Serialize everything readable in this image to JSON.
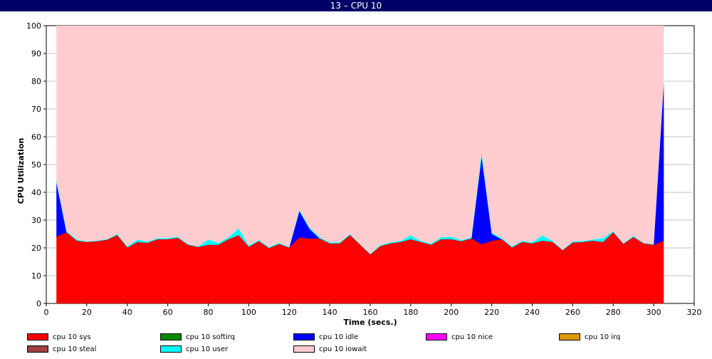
{
  "window": {
    "title": "13 – CPU 10"
  },
  "chart_data": {
    "type": "area",
    "stacked": true,
    "xlabel": "Time (secs.)",
    "ylabel": "CPU Utilization",
    "xlim": [
      0,
      320
    ],
    "ylim": [
      0,
      100
    ],
    "x_ticks": [
      0,
      20,
      40,
      60,
      80,
      100,
      120,
      140,
      160,
      180,
      200,
      220,
      240,
      260,
      280,
      300,
      320
    ],
    "y_ticks": [
      0,
      10,
      20,
      30,
      40,
      50,
      60,
      70,
      80,
      90,
      100
    ],
    "grid": "horizontal",
    "legend_position": "bottom",
    "x": [
      5,
      10,
      15,
      20,
      25,
      30,
      35,
      40,
      45,
      50,
      55,
      60,
      65,
      70,
      75,
      80,
      85,
      90,
      95,
      100,
      105,
      110,
      115,
      120,
      125,
      130,
      135,
      140,
      145,
      150,
      155,
      160,
      165,
      170,
      175,
      180,
      185,
      190,
      195,
      200,
      205,
      210,
      215,
      220,
      225,
      230,
      235,
      240,
      245,
      250,
      255,
      260,
      265,
      270,
      275,
      280,
      285,
      290,
      295,
      300,
      305
    ],
    "series": [
      {
        "name": "cpu 10 sys",
        "color": "#ff0000",
        "values": [
          24,
          25.5,
          22.5,
          22,
          22.3,
          22.8,
          24.5,
          20,
          22,
          21.7,
          23,
          23,
          23.5,
          21,
          20.2,
          21,
          21,
          23,
          24.5,
          20.3,
          22.3,
          19.8,
          21.3,
          20,
          23.7,
          23.3,
          23.3,
          21.5,
          21.5,
          24.5,
          21,
          17.5,
          20.5,
          21.5,
          22,
          23,
          22,
          21,
          23,
          23,
          22.3,
          23.3,
          21.2,
          22.5,
          23,
          20,
          22,
          21.5,
          22.5,
          22,
          19,
          21.8,
          22,
          22.5,
          22,
          25.5,
          21.3,
          23.8,
          21.5,
          21,
          22.5
        ]
      },
      {
        "name": "cpu 10 softirq",
        "color": "#008800",
        "values": [
          0,
          0,
          0,
          0,
          0,
          0,
          0,
          0,
          0,
          0,
          0,
          0,
          0,
          0,
          0,
          0,
          0,
          0,
          0,
          0,
          0,
          0,
          0,
          0,
          0,
          0,
          0,
          0,
          0,
          0,
          0,
          0,
          0,
          0,
          0,
          0,
          0,
          0,
          0,
          0,
          0,
          0,
          0,
          0,
          0,
          0,
          0,
          0,
          0,
          0,
          0,
          0,
          0,
          0,
          0,
          0,
          0,
          0,
          0,
          0,
          0
        ]
      },
      {
        "name": "cpu 10 idle",
        "color": "#0000ff",
        "values": [
          19.5,
          0,
          0,
          0,
          0,
          0,
          0,
          0,
          0,
          0,
          0,
          0,
          0,
          0,
          0,
          0,
          0,
          0,
          0,
          0,
          0,
          0,
          0,
          0,
          9.5,
          3.5,
          0,
          0,
          0,
          0,
          0,
          0,
          0,
          0,
          0,
          0,
          0,
          0,
          0,
          0,
          0,
          0,
          31.5,
          2.5,
          0,
          0,
          0,
          0,
          0,
          0,
          0,
          0,
          0,
          0,
          0,
          0,
          0,
          0,
          0,
          0,
          57
        ]
      },
      {
        "name": "cpu 10 nice",
        "color": "#ff00ff",
        "values": [
          0,
          0,
          0,
          0,
          0,
          0,
          0,
          0,
          0,
          0,
          0,
          0,
          0,
          0,
          0,
          0,
          0,
          0,
          0,
          0,
          0,
          0,
          0,
          0,
          0,
          0,
          0,
          0,
          0,
          0,
          0,
          0,
          0,
          0,
          0,
          0,
          0,
          0,
          0,
          0,
          0,
          0,
          0,
          0,
          0,
          0,
          0,
          0,
          0,
          0,
          0,
          0,
          0,
          0,
          0,
          0,
          0,
          0,
          0,
          0,
          0
        ]
      },
      {
        "name": "cpu 10 irq",
        "color": "#dd9900",
        "values": [
          0,
          0,
          0,
          0,
          0,
          0,
          0,
          0,
          0,
          0,
          0,
          0,
          0,
          0,
          0,
          0,
          0,
          0,
          0,
          0,
          0,
          0,
          0,
          0,
          0,
          0,
          0,
          0,
          0,
          0,
          0,
          0,
          0,
          0,
          0,
          0,
          0,
          0,
          0,
          0,
          0,
          0,
          0,
          0,
          0,
          0,
          0,
          0,
          0,
          0,
          0,
          0,
          0,
          0,
          0,
          0,
          0,
          0,
          0,
          0,
          0
        ]
      },
      {
        "name": "cpu 10 steal",
        "color": "#a04040",
        "values": [
          0,
          0,
          0,
          0,
          0,
          0,
          0,
          0,
          0,
          0,
          0,
          0,
          0,
          0,
          0,
          0,
          0,
          0,
          0,
          0,
          0,
          0,
          0,
          0,
          0,
          0,
          0,
          0,
          0,
          0,
          0,
          0,
          0,
          0,
          0,
          0,
          0,
          0,
          0,
          0,
          0,
          0,
          0,
          0,
          0,
          0,
          0,
          0,
          0,
          0,
          0,
          0,
          0,
          0,
          0,
          0,
          0,
          0,
          0,
          0,
          0
        ]
      },
      {
        "name": "cpu 10 user",
        "color": "#00ffff",
        "values": [
          0.8,
          0.5,
          0.5,
          0.3,
          0.3,
          0.3,
          0.5,
          0.5,
          1,
          0.5,
          0.5,
          0.5,
          0.5,
          0.3,
          0.3,
          2,
          0.8,
          0.8,
          2.5,
          0.5,
          0.5,
          0.5,
          0.5,
          0.3,
          0.5,
          0.5,
          0.5,
          0.5,
          0.5,
          0.5,
          0.3,
          0.3,
          0.5,
          0.5,
          0.5,
          1.5,
          0.5,
          0.5,
          0.8,
          1,
          0.5,
          0.5,
          1.5,
          0.5,
          0.5,
          0.5,
          0.5,
          0.5,
          2,
          0.5,
          0.3,
          0.5,
          0.5,
          0.5,
          1.5,
          0.5,
          0.3,
          0.5,
          0.3,
          0.3,
          0.5
        ]
      },
      {
        "name": "cpu 10 iowait",
        "color": "#ffccd0",
        "values": [
          55.7,
          74,
          77,
          77.7,
          77.4,
          76.9,
          75,
          79.5,
          77,
          77.8,
          76.5,
          76.5,
          76,
          78.7,
          79.5,
          77,
          78.2,
          76.2,
          73,
          79.2,
          77.2,
          79.7,
          78.2,
          79.7,
          66.3,
          72.7,
          76.2,
          78,
          78,
          75,
          78.7,
          82.2,
          79,
          78,
          77.5,
          75.5,
          77.5,
          78.5,
          76.2,
          76,
          77.2,
          76.2,
          45.8,
          74.5,
          76.5,
          79.5,
          77.5,
          78,
          75.5,
          77.5,
          80.7,
          77.7,
          77.5,
          77,
          76.5,
          74,
          78.4,
          75.7,
          78.2,
          78.7,
          20
        ]
      }
    ]
  }
}
